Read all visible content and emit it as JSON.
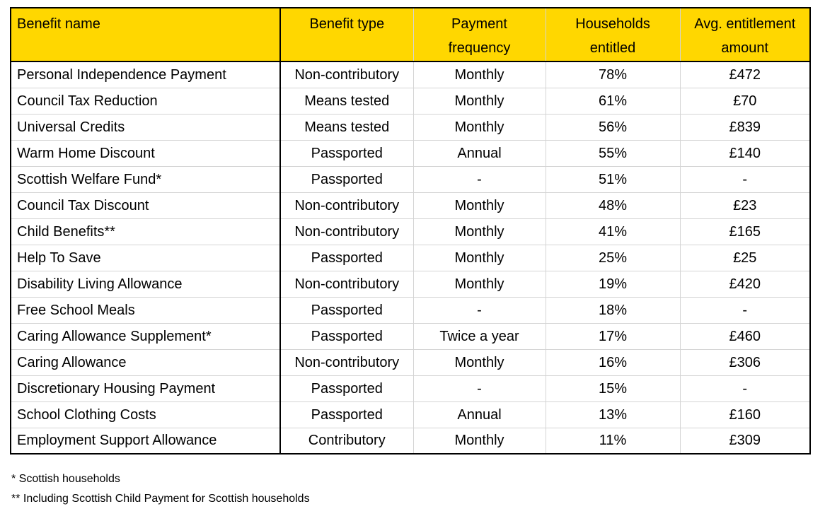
{
  "colors": {
    "header_bg": "#FFD700",
    "border_dark": "#000000",
    "border_light": "#D4D4D4",
    "text": "#000000",
    "background": "#FFFFFF"
  },
  "table": {
    "columns": [
      {
        "id": "benefit-name",
        "label": "Benefit name",
        "lines": [
          "Benefit name"
        ],
        "align": "left"
      },
      {
        "id": "benefit-type",
        "label": "Benefit type",
        "lines": [
          "Benefit type"
        ],
        "align": "center"
      },
      {
        "id": "payment-frequency",
        "label": "Payment frequency",
        "lines": [
          "Payment",
          "frequency"
        ],
        "align": "center"
      },
      {
        "id": "households-entitled",
        "label": "Households entitled",
        "lines": [
          "Households",
          "entitled"
        ],
        "align": "center"
      },
      {
        "id": "avg-entitlement-amount",
        "label": "Avg. entitlement amount",
        "lines": [
          "Avg. entitlement",
          "amount"
        ],
        "align": "center"
      }
    ]
  },
  "chart_data": {
    "type": "table",
    "columns": [
      "Benefit name",
      "Benefit type",
      "Payment frequency",
      "Households entitled",
      "Avg. entitlement amount"
    ],
    "rows": [
      [
        "Personal Independence Payment",
        "Non-contributory",
        "Monthly",
        "78%",
        "£472"
      ],
      [
        "Council Tax Reduction",
        "Means tested",
        "Monthly",
        "61%",
        "£70"
      ],
      [
        "Universal Credits",
        "Means tested",
        "Monthly",
        "56%",
        "£839"
      ],
      [
        "Warm Home Discount",
        "Passported",
        "Annual",
        "55%",
        "£140"
      ],
      [
        "Scottish Welfare Fund*",
        "Passported",
        "-",
        "51%",
        "-"
      ],
      [
        "Council Tax Discount",
        "Non-contributory",
        "Monthly",
        "48%",
        "£23"
      ],
      [
        "Child Benefits**",
        "Non-contributory",
        "Monthly",
        "41%",
        "£165"
      ],
      [
        "Help To Save",
        "Passported",
        "Monthly",
        "25%",
        "£25"
      ],
      [
        "Disability Living Allowance",
        "Non-contributory",
        "Monthly",
        "19%",
        "£420"
      ],
      [
        "Free School Meals",
        "Passported",
        "-",
        "18%",
        "-"
      ],
      [
        "Caring Allowance Supplement*",
        "Passported",
        "Twice a year",
        "17%",
        "£460"
      ],
      [
        "Caring Allowance",
        "Non-contributory",
        "Monthly",
        "16%",
        "£306"
      ],
      [
        "Discretionary Housing Payment",
        "Passported",
        "-",
        "15%",
        "-"
      ],
      [
        "School Clothing Costs",
        "Passported",
        "Annual",
        "13%",
        "£160"
      ],
      [
        "Employment Support Allowance",
        "Contributory",
        "Monthly",
        "11%",
        "£309"
      ]
    ]
  },
  "footnotes": [
    "* Scottish households",
    "** Including Scottish Child Payment for Scottish households"
  ]
}
